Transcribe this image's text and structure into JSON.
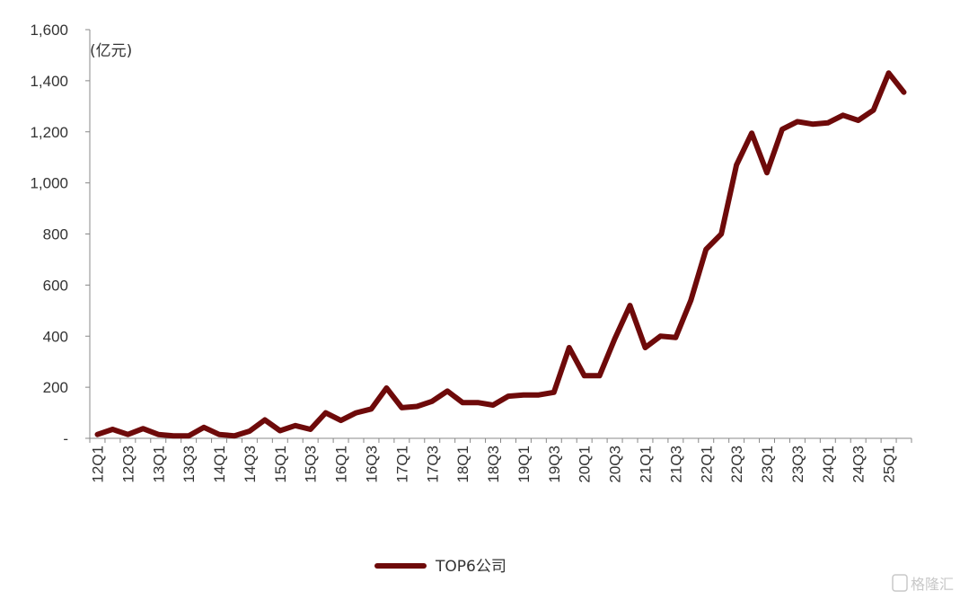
{
  "chart_data": {
    "type": "line",
    "title": "",
    "ylabel": "",
    "unit_label": "(亿元)",
    "ylim": [
      0,
      1600
    ],
    "yticks": [
      0,
      200,
      400,
      600,
      800,
      1000,
      1200,
      1400,
      1600
    ],
    "ytick_labels": [
      "-",
      "200",
      "400",
      "600",
      "800",
      "1,000",
      "1,200",
      "1,400",
      "1,600"
    ],
    "x": [
      "12Q1",
      "12Q2",
      "12Q3",
      "12Q4",
      "13Q1",
      "13Q2",
      "13Q3",
      "13Q4",
      "14Q1",
      "14Q2",
      "14Q3",
      "14Q4",
      "15Q1",
      "15Q2",
      "15Q3",
      "15Q4",
      "16Q1",
      "16Q2",
      "16Q3",
      "16Q4",
      "17Q1",
      "17Q2",
      "17Q3",
      "17Q4",
      "18Q1",
      "18Q2",
      "18Q3",
      "18Q4",
      "19Q1",
      "19Q2",
      "19Q3",
      "19Q4",
      "20Q1",
      "20Q2",
      "20Q3",
      "20Q4",
      "21Q1",
      "21Q2",
      "21Q3",
      "21Q4",
      "22Q1",
      "22Q2",
      "22Q3",
      "22Q4",
      "23Q1",
      "23Q2",
      "23Q3",
      "23Q4",
      "24Q1",
      "24Q2",
      "24Q3",
      "24Q4",
      "25Q1",
      "25Q2"
    ],
    "xtick_labels": [
      "12Q1",
      "12Q3",
      "13Q1",
      "13Q3",
      "14Q1",
      "14Q3",
      "15Q1",
      "15Q3",
      "16Q1",
      "16Q3",
      "17Q1",
      "17Q3",
      "18Q1",
      "18Q3",
      "19Q1",
      "19Q3",
      "20Q1",
      "20Q3",
      "21Q1",
      "21Q3",
      "22Q1",
      "22Q3",
      "23Q1",
      "23Q3",
      "24Q1",
      "24Q3",
      "25Q1"
    ],
    "series": [
      {
        "name": "TOP6公司",
        "color": "#6e0a0a",
        "values": [
          15,
          35,
          15,
          38,
          15,
          10,
          10,
          43,
          15,
          10,
          28,
          72,
          30,
          50,
          35,
          100,
          70,
          100,
          115,
          197,
          120,
          125,
          145,
          185,
          140,
          140,
          130,
          165,
          170,
          170,
          180,
          355,
          245,
          245,
          390,
          520,
          355,
          400,
          395,
          540,
          740,
          800,
          1070,
          1195,
          1040,
          1210,
          1240,
          1230,
          1235,
          1265,
          1245,
          1285,
          1430,
          1355
        ]
      }
    ],
    "legend": {
      "position": "bottom-center",
      "label": "TOP6公司"
    },
    "grid": false
  },
  "watermark": {
    "text": "格隆汇"
  }
}
